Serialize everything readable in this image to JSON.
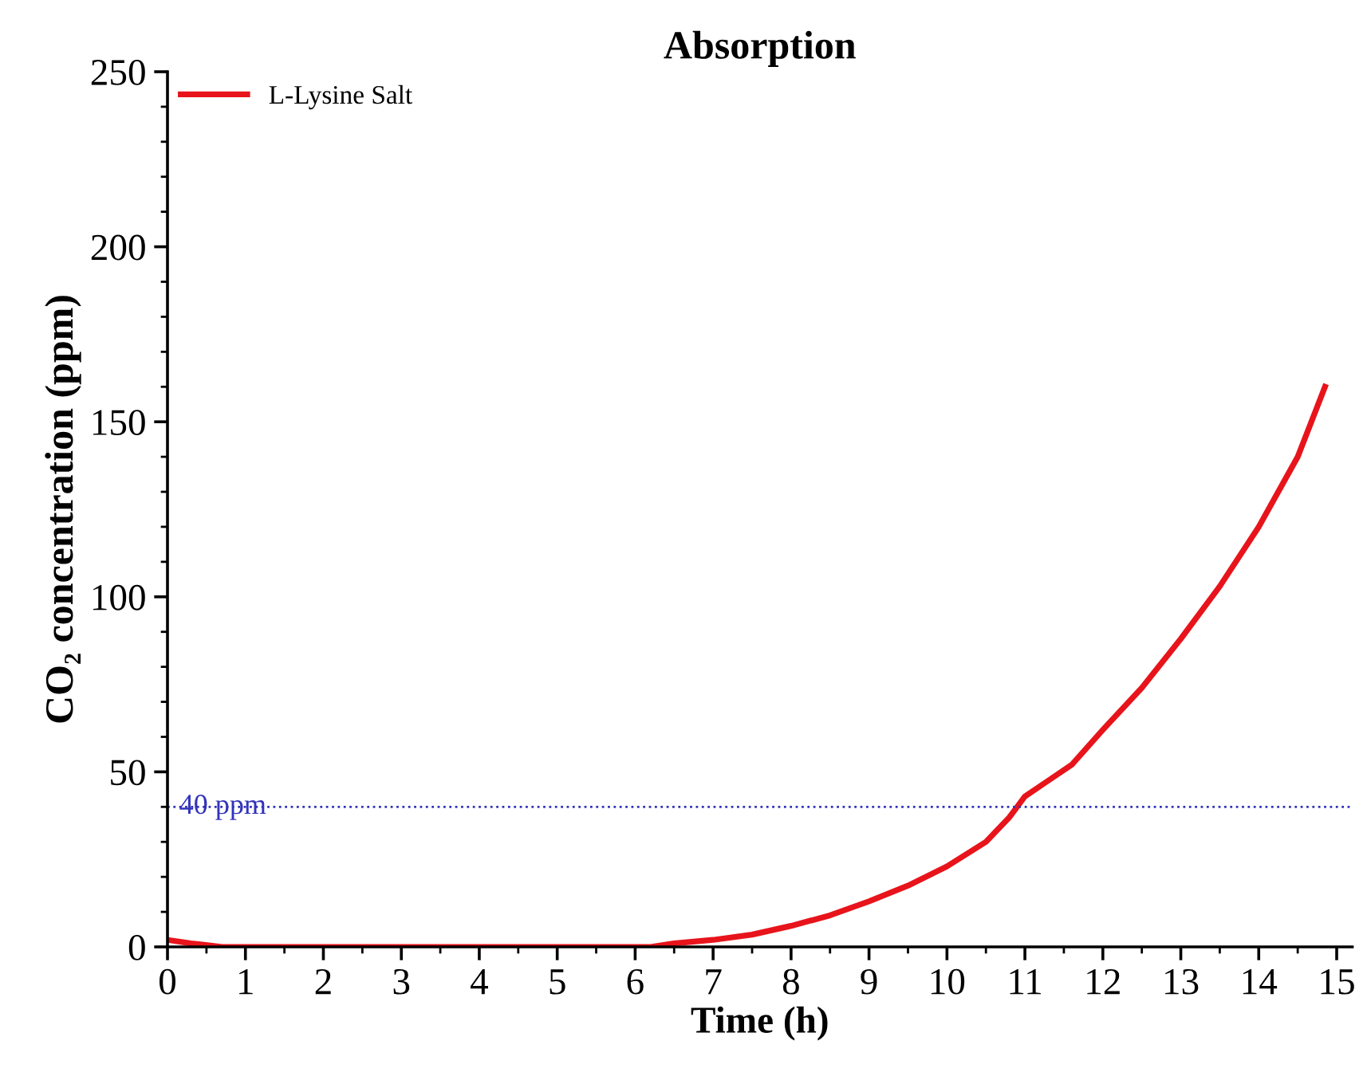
{
  "chart_data": {
    "type": "line",
    "title": "Absorption",
    "xlabel": "Time (h)",
    "ylabel": "CO₂ concentration (ppm)",
    "series": [
      {
        "name": "L-Lysine Salt",
        "color": "#e8141b",
        "x": [
          0,
          0.3,
          0.7,
          1,
          2,
          3,
          4,
          5,
          6,
          6.2,
          6.5,
          7,
          7.5,
          8,
          8.5,
          9,
          9.5,
          10,
          10.5,
          10.8,
          11,
          11.3,
          11.6,
          12,
          12.5,
          13,
          13.5,
          14,
          14.5,
          14.85
        ],
        "values": [
          2,
          1,
          0,
          0,
          0,
          0,
          0,
          0,
          0,
          0,
          1,
          2,
          3.5,
          6,
          9,
          13,
          17.5,
          23,
          30,
          37,
          43,
          47.5,
          52,
          62,
          74,
          88,
          103,
          120,
          140,
          160
        ]
      }
    ],
    "xlim": [
      0,
      15.2
    ],
    "xticks": [
      0,
      1,
      2,
      3,
      4,
      5,
      6,
      7,
      8,
      9,
      10,
      11,
      12,
      13,
      14,
      15
    ],
    "ylim": [
      0,
      250
    ],
    "yticks": [
      0,
      50,
      100,
      150,
      200,
      250
    ],
    "ref_lines": [
      {
        "axis": "y",
        "value": 40,
        "label": "40 ppm",
        "color": "#3333bb",
        "line_style": "dotted"
      }
    ],
    "legend": "top left",
    "grid": false
  }
}
